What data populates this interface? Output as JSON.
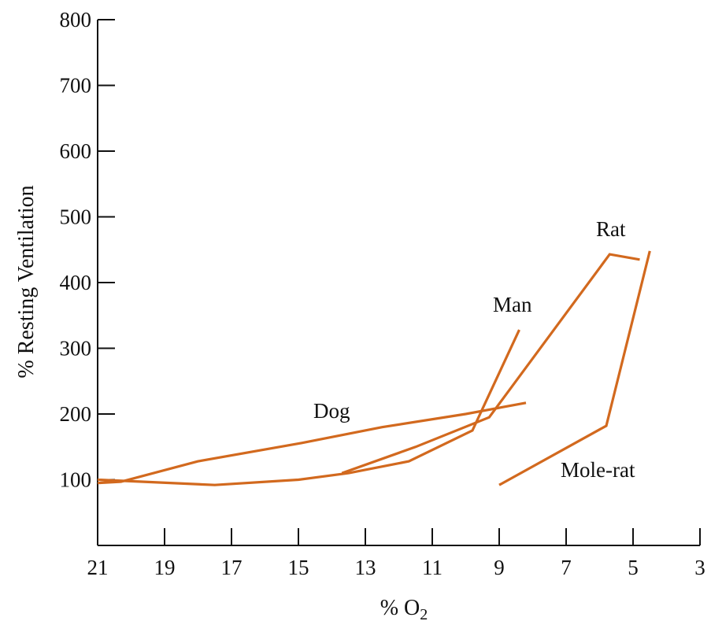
{
  "chart_data": {
    "type": "line",
    "title": "",
    "xlabel": "% O",
    "xlabel_subscript": "2",
    "ylabel": "% Resting Ventilation",
    "xlim": [
      21,
      3
    ],
    "ylim": [
      0,
      800
    ],
    "x_ticks": [
      21,
      19,
      17,
      15,
      13,
      11,
      9,
      7,
      5,
      3
    ],
    "y_ticks": [
      100,
      200,
      300,
      400,
      500,
      600,
      700,
      800
    ],
    "grid": false,
    "line_color": "#d2691e",
    "series": [
      {
        "name": "Dog",
        "points": [
          [
            21,
            95
          ],
          [
            20.3,
            97
          ],
          [
            18,
            128
          ],
          [
            15,
            155
          ],
          [
            12.5,
            180
          ],
          [
            10,
            200
          ],
          [
            8.2,
            217
          ]
        ]
      },
      {
        "name": "Man",
        "points": [
          [
            21,
            100
          ],
          [
            17.5,
            92
          ],
          [
            15,
            100
          ],
          [
            13.5,
            110
          ],
          [
            11.7,
            128
          ],
          [
            9.8,
            175
          ],
          [
            8.4,
            328
          ]
        ]
      },
      {
        "name": "Rat",
        "points": [
          [
            13.7,
            110
          ],
          [
            11.5,
            150
          ],
          [
            9.3,
            195
          ],
          [
            5.7,
            443
          ],
          [
            4.8,
            435
          ]
        ]
      },
      {
        "name": "Mole-rat",
        "points": [
          [
            9,
            92
          ],
          [
            5.8,
            182
          ],
          [
            4.5,
            448
          ]
        ]
      }
    ]
  }
}
